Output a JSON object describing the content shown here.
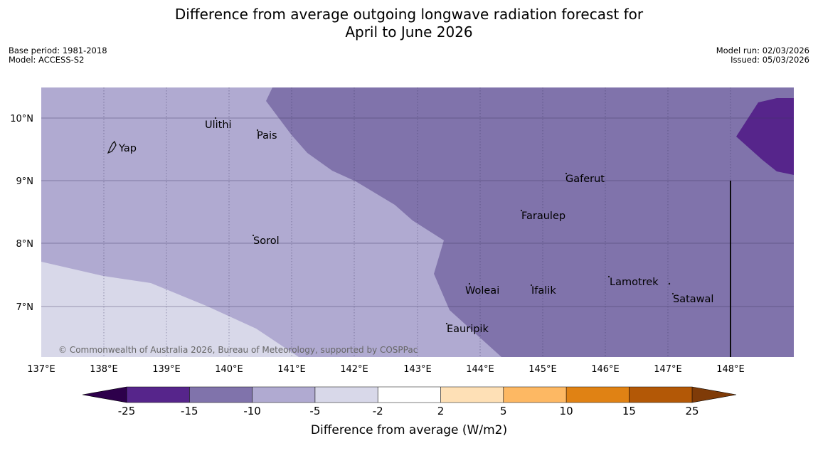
{
  "title": {
    "line1": "Difference from average outgoing longwave radiation forecast for",
    "line2": "April to June 2026"
  },
  "meta": {
    "base_period": "Base period: 1981-2018",
    "model": "Model: ACCESS-S2",
    "model_run": "Model run: 02/03/2026",
    "issued": "Issued: 05/03/2026"
  },
  "map": {
    "lon_labels": [
      "137°E",
      "138°E",
      "139°E",
      "140°E",
      "141°E",
      "142°E",
      "143°E",
      "144°E",
      "145°E",
      "146°E",
      "147°E",
      "148°E"
    ],
    "lat_labels": [
      "10°N",
      "9°N",
      "8°N",
      "7°N"
    ],
    "places": [
      "Ulithi",
      "Pais",
      "Yap",
      "Gaferut",
      "Faraulep",
      "Sorol",
      "Lamotrek",
      "Woleai",
      "Ifalik",
      "Satawal",
      "Eauripik"
    ],
    "copyright": "© Commonwealth of Australia 2026, Bureau of Meteorology, supported by COSPPac",
    "colors": {
      "c_m15_m10": "#8073ab",
      "c_m10_m5": "#b0aad1",
      "c_m5_m2": "#d8d8e9",
      "c_m25_m15": "#56258b",
      "land": "#222222"
    }
  },
  "colorbar": {
    "ticks": [
      "-25",
      "-15",
      "-10",
      "-5",
      "-2",
      "2",
      "5",
      "10",
      "15",
      "25"
    ],
    "label": "Difference from average (W/m2)",
    "colors": [
      "#56258b",
      "#8073ab",
      "#b0aad1",
      "#d8d8e9",
      "#ffffff",
      "#fee0b6",
      "#fdb863",
      "#e08214",
      "#b35806"
    ],
    "under_color": "#2d004b",
    "over_color": "#7f3b08"
  }
}
